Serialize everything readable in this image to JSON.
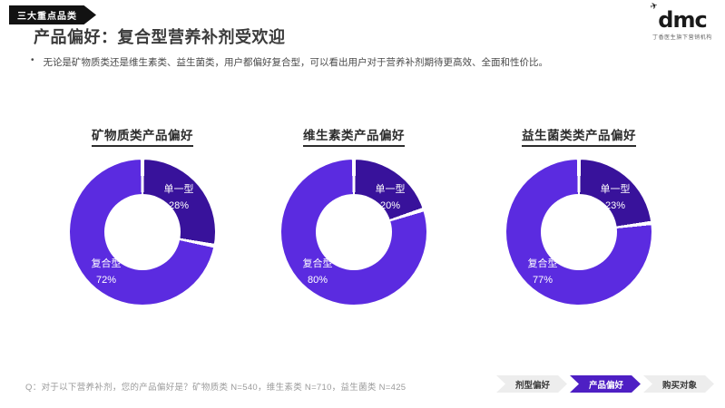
{
  "page": {
    "tag": "三大重点品类",
    "title": "产品偏好：复合型营养补剂受欢迎",
    "bullet_marker": "•",
    "bullet": "无论是矿物质类还是维生素类、益生菌类，用户都偏好复合型，可以看出用户对于营养补剂期待更高效、全面和性价比。",
    "footnote": "Q：对于以下营养补剂，您的产品偏好是？矿物质类 N=540，维生素类 N=710，益生菌类 N=425"
  },
  "logo": {
    "text": "dmc",
    "plane_icon": "✈",
    "tagline": "丁香医生旗下营销机构"
  },
  "colors": {
    "slice_single": "#38129B",
    "slice_compound": "#5B2BE0",
    "tab_active_bg": "#4E1FC4",
    "banner_bg": "#121212"
  },
  "chart_data": [
    {
      "type": "pie",
      "title": "矿物质类产品偏好",
      "start_angle_deg": 0,
      "donut_hole_ratio": 0.52,
      "slices": [
        {
          "name": "单一型",
          "value": 28,
          "label": "28%",
          "color": "#38129B"
        },
        {
          "name": "复合型",
          "value": 72,
          "label": "72%",
          "color": "#5B2BE0"
        }
      ]
    },
    {
      "type": "pie",
      "title": "维生素类产品偏好",
      "start_angle_deg": 0,
      "donut_hole_ratio": 0.52,
      "slices": [
        {
          "name": "单一型",
          "value": 20,
          "label": "20%",
          "color": "#38129B"
        },
        {
          "name": "复合型",
          "value": 80,
          "label": "80%",
          "color": "#5B2BE0"
        }
      ]
    },
    {
      "type": "pie",
      "title": "益生菌类类产品偏好",
      "start_angle_deg": 0,
      "donut_hole_ratio": 0.52,
      "slices": [
        {
          "name": "单一型",
          "value": 23,
          "label": "23%",
          "color": "#38129B"
        },
        {
          "name": "复合型",
          "value": 77,
          "label": "77%",
          "color": "#5B2BE0"
        }
      ]
    }
  ],
  "tabs": [
    {
      "label": "剂型偏好",
      "active": false
    },
    {
      "label": "产品偏好",
      "active": true
    },
    {
      "label": "购买对象",
      "active": false
    }
  ]
}
